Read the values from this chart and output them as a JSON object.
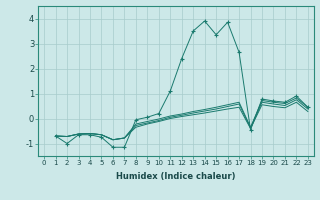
{
  "title": "",
  "xlabel": "Humidex (Indice chaleur)",
  "xlim": [
    -0.5,
    23.5
  ],
  "ylim": [
    -1.5,
    4.5
  ],
  "xticks": [
    0,
    1,
    2,
    3,
    4,
    5,
    6,
    7,
    8,
    9,
    10,
    11,
    12,
    13,
    14,
    15,
    16,
    17,
    18,
    19,
    20,
    21,
    22,
    23
  ],
  "yticks": [
    -1,
    0,
    1,
    2,
    3,
    4
  ],
  "bg_color": "#cce8e8",
  "line_color": "#1a7a6e",
  "series_marked": [
    {
      "x": [
        1,
        2,
        3,
        4,
        5,
        6,
        7,
        8,
        9,
        10,
        11,
        12,
        13,
        14,
        15,
        16,
        17,
        18,
        19,
        20,
        21,
        22,
        23
      ],
      "y": [
        -0.7,
        -1.0,
        -0.65,
        -0.65,
        -0.75,
        -1.15,
        -1.15,
        -0.05,
        0.05,
        0.2,
        1.1,
        2.4,
        3.5,
        3.9,
        3.35,
        3.85,
        2.65,
        -0.45,
        0.78,
        0.7,
        0.65,
        0.9,
        0.45
      ]
    }
  ],
  "series_line": [
    {
      "x": [
        1,
        2,
        3,
        4,
        5,
        6,
        7,
        8,
        9,
        10,
        11,
        12,
        13,
        14,
        15,
        16,
        17,
        18,
        19,
        20,
        21,
        22,
        23
      ],
      "y": [
        -0.7,
        -0.72,
        -0.62,
        -0.6,
        -0.65,
        -0.85,
        -0.78,
        -0.35,
        -0.22,
        -0.12,
        0.0,
        0.08,
        0.15,
        0.22,
        0.3,
        0.38,
        0.45,
        -0.4,
        0.55,
        0.48,
        0.43,
        0.65,
        0.28
      ]
    },
    {
      "x": [
        1,
        2,
        3,
        4,
        5,
        6,
        7,
        8,
        9,
        10,
        11,
        12,
        13,
        14,
        15,
        16,
        17,
        18,
        19,
        20,
        21,
        22,
        23
      ],
      "y": [
        -0.7,
        -0.72,
        -0.62,
        -0.6,
        -0.65,
        -0.85,
        -0.78,
        -0.28,
        -0.18,
        -0.08,
        0.05,
        0.13,
        0.22,
        0.3,
        0.38,
        0.48,
        0.58,
        -0.38,
        0.65,
        0.58,
        0.52,
        0.75,
        0.38
      ]
    },
    {
      "x": [
        1,
        2,
        3,
        4,
        5,
        6,
        7,
        8,
        9,
        10,
        11,
        12,
        13,
        14,
        15,
        16,
        17,
        18,
        19,
        20,
        21,
        22,
        23
      ],
      "y": [
        -0.7,
        -0.72,
        -0.62,
        -0.6,
        -0.65,
        -0.85,
        -0.78,
        -0.22,
        -0.12,
        -0.02,
        0.1,
        0.18,
        0.28,
        0.36,
        0.45,
        0.55,
        0.65,
        -0.35,
        0.72,
        0.65,
        0.6,
        0.82,
        0.45
      ]
    }
  ]
}
